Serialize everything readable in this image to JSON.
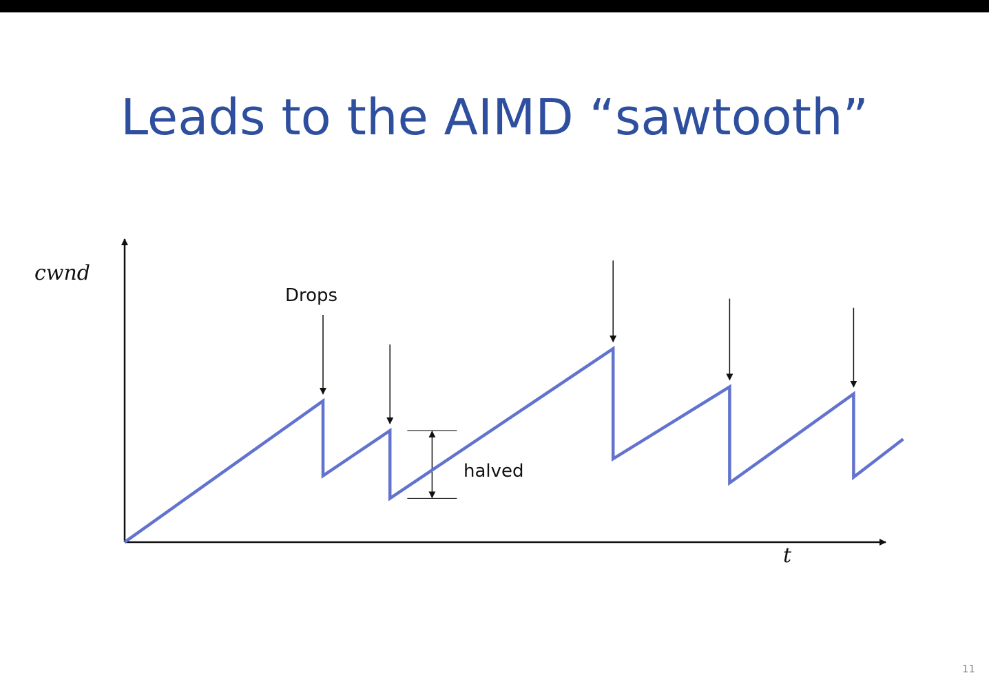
{
  "slide": {
    "title": "Leads to the AIMD “sawtooth”",
    "page_number": "11"
  },
  "diagram": {
    "y_axis_label": "cwnd",
    "x_axis_label": "t",
    "drops_label": "Drops",
    "halved_label": "halved",
    "line_color": "#6272cf",
    "sawtooth": [
      [
        0,
        0
      ],
      [
        4.0,
        5.0
      ],
      [
        4.0,
        2.35
      ],
      [
        5.35,
        3.95
      ],
      [
        5.35,
        1.55
      ],
      [
        9.85,
        6.85
      ],
      [
        9.85,
        2.95
      ],
      [
        12.2,
        5.5
      ],
      [
        12.2,
        2.1
      ],
      [
        14.7,
        5.25
      ],
      [
        14.7,
        2.3
      ],
      [
        15.7,
        3.65
      ]
    ],
    "drop_times": [
      4.0,
      5.35,
      9.85,
      12.2,
      14.7
    ],
    "halved_marker": {
      "t": 6.2,
      "from": 3.95,
      "to": 1.55
    }
  }
}
